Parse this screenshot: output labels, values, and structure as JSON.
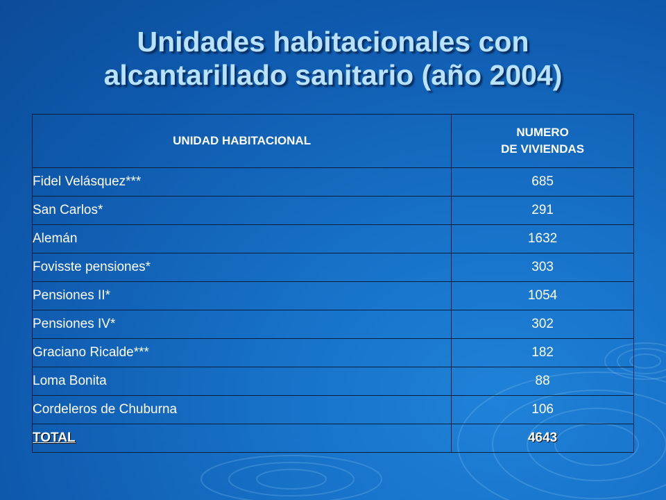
{
  "title": {
    "line1": "Unidades habitacionales con",
    "line2": "alcantarillado sanitario (año 2004)"
  },
  "table": {
    "headers": {
      "unidad": "UNIDAD HABITACIONAL",
      "numero_line1": "NUMERO",
      "numero_line2": "DE VIVIENDAS"
    },
    "rows": [
      {
        "name": "Fidel Velásquez***",
        "value": "685"
      },
      {
        "name": "San Carlos*",
        "value": "291"
      },
      {
        "name": "Alemán",
        "value": "1632"
      },
      {
        "name": "Fovisste pensiones*",
        "value": "303"
      },
      {
        "name": "Pensiones II*",
        "value": "1054"
      },
      {
        "name": "Pensiones IV*",
        "value": "302"
      },
      {
        "name": "Graciano Ricalde***",
        "value": "182"
      },
      {
        "name": "Loma Bonita",
        "value": "88"
      },
      {
        "name": "Cordeleros de Chuburna",
        "value": "106"
      }
    ],
    "total": {
      "label": "TOTAL",
      "value": "4643"
    }
  },
  "colors": {
    "background": "#1670c6",
    "title_text": "#b9e2ff",
    "table_text": "#ffffff",
    "grid": "#0c1f3a"
  }
}
